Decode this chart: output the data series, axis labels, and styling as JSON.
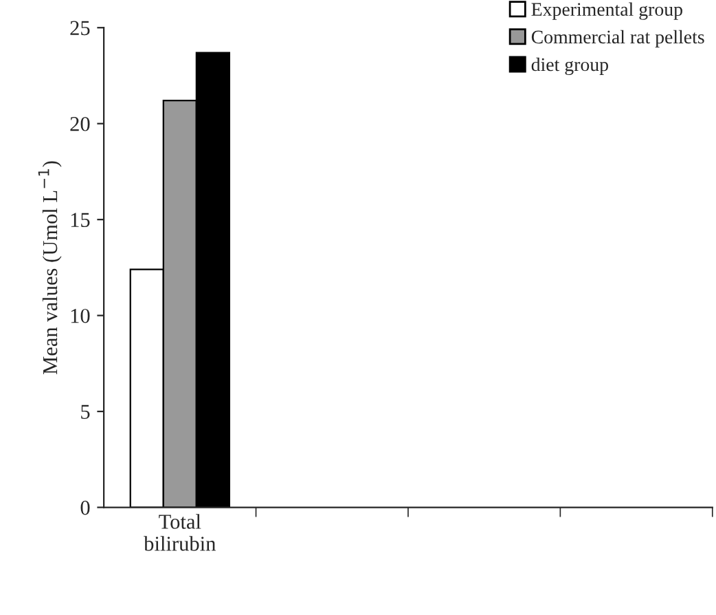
{
  "chart_data": {
    "type": "bar",
    "ylabel": "Mean values (Umol L$^{−1}$)",
    "categories": [
      "Total\nbilirubin",
      null,
      null,
      null
    ],
    "series": [
      {
        "name": "Experimental group",
        "color": "#ffffff",
        "values": [
          12.4,
          null,
          null,
          null
        ]
      },
      {
        "name": "Commercial rat pellets",
        "color": "#999999",
        "values": [
          21.2,
          null,
          null,
          null
        ]
      },
      {
        "name": "diet group",
        "color": "#000000",
        "values": [
          23.7,
          null,
          null,
          null
        ]
      }
    ],
    "ylim": [
      0,
      25
    ],
    "yticks": [
      0,
      5,
      10,
      15,
      20,
      25
    ],
    "grid": false,
    "legend": "top right"
  }
}
